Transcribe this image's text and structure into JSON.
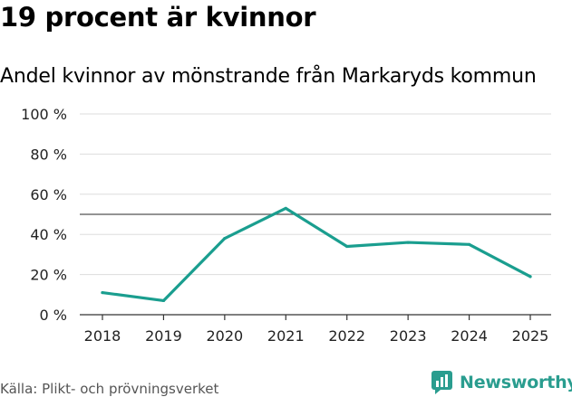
{
  "header": {
    "title": "19 procent är kvinnor",
    "subtitle": "Andel kvinnor av mönstrande från Markaryds kommun"
  },
  "footer": {
    "source": "Källa: Plikt- och prövningsverket",
    "brand": "Newsworthy"
  },
  "colors": {
    "line": "#1a9e8f",
    "reference": "#555555",
    "grid": "#dddddd",
    "brand": "#2a9d8f"
  },
  "chart_data": {
    "type": "line",
    "title": "19 procent är kvinnor",
    "subtitle": "Andel kvinnor av mönstrande från Markaryds kommun",
    "categories": [
      "2018",
      "2019",
      "2020",
      "2021",
      "2022",
      "2023",
      "2024",
      "2025"
    ],
    "series": [
      {
        "name": "Andel kvinnor",
        "values": [
          11,
          7,
          38,
          53,
          34,
          36,
          35,
          19
        ]
      }
    ],
    "reference_line": 50,
    "ylim": [
      0,
      100
    ],
    "yticks": [
      0,
      20,
      40,
      60,
      80,
      100
    ],
    "ytick_labels": [
      "0 %",
      "20 %",
      "40 %",
      "60 %",
      "80 %",
      "100 %"
    ],
    "xlabel": "",
    "ylabel": "",
    "grid": true
  }
}
